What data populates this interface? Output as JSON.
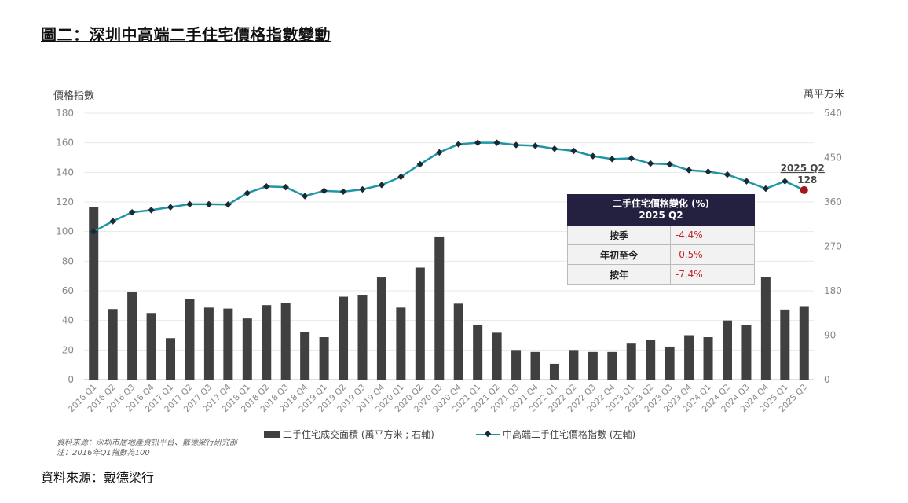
{
  "page_title": "圖二：深圳中高端二手住宅價格指數變動",
  "left_axis_title": "價格指數",
  "right_axis_title": "萬平方米",
  "chart_data": {
    "type": "bar+line",
    "categories": [
      "2016 Q1",
      "2016 Q2",
      "2016 Q3",
      "2016 Q4",
      "2017 Q1",
      "2017 Q2",
      "2017 Q3",
      "2017 Q4",
      "2018 Q1",
      "2018 Q2",
      "2018 Q3",
      "2018 Q4",
      "2019 Q1",
      "2019 Q2",
      "2019 Q3",
      "2019 Q4",
      "2020 Q1",
      "2020 Q2",
      "2020 Q3",
      "2020 Q4",
      "2021 Q1",
      "2021 Q2",
      "2021 Q3",
      "2021 Q4",
      "2022 Q1",
      "2022 Q2",
      "2022 Q3",
      "2022 Q4",
      "2023 Q1",
      "2023 Q2",
      "2023 Q3",
      "2023 Q4",
      "2024 Q1",
      "2024 Q2",
      "2024 Q3",
      "2024 Q4",
      "2025 Q1",
      "2025 Q2"
    ],
    "left_ylim": [
      0,
      180
    ],
    "left_ticks": [
      "0",
      "20",
      "40",
      "60",
      "80",
      "100",
      "120",
      "140",
      "160",
      "180"
    ],
    "right_ylim": [
      0,
      540
    ],
    "right_ticks": [
      "0",
      "90",
      "180",
      "270",
      "360",
      "450",
      "540"
    ],
    "series": [
      {
        "name": "二手住宅成交面積 (萬平方米 ; 右軸)",
        "kind": "bar",
        "axis": "right",
        "color": "#404040",
        "values": [
          349,
          143,
          177,
          135,
          84,
          163,
          146,
          144,
          124,
          151,
          155,
          97,
          86,
          168,
          172,
          207,
          146,
          227,
          290,
          154,
          111,
          95,
          60,
          56,
          32,
          60,
          56,
          56,
          73,
          81,
          67,
          90,
          86,
          120,
          111,
          208,
          142,
          149
        ]
      },
      {
        "name": "中高端二手住宅價格指數 (左軸)",
        "kind": "line",
        "axis": "left",
        "color": "#1f95a6",
        "values": [
          100,
          107,
          113,
          114.5,
          116.5,
          118.5,
          118.5,
          118.3,
          126,
          130.5,
          130,
          124,
          127.5,
          127,
          128.5,
          131.5,
          137,
          145.5,
          153.5,
          159,
          160,
          160,
          158.5,
          158,
          156,
          154.5,
          151,
          149,
          149.5,
          146,
          145.5,
          141.5,
          140.5,
          138.5,
          134,
          129,
          134,
          128
        ]
      }
    ],
    "annotation": {
      "label": "2025 Q2",
      "value": "128",
      "marker_color": "#a3161e"
    }
  },
  "info_table": {
    "header_line1": "二手住宅價格變化 (%)",
    "header_line2": "2025 Q2",
    "rows": [
      {
        "label": "按季",
        "value": "-4.4%"
      },
      {
        "label": "年初至今",
        "value": "-0.5%"
      },
      {
        "label": "按年",
        "value": "-7.4%"
      }
    ]
  },
  "legend": {
    "bar_label": "二手住宅成交面積 (萬平方米 ; 右軸)",
    "line_label": "中高端二手住宅價格指數 (左軸)"
  },
  "source_note_line1": "資料來源：深圳市居地產資訊平台、戴德梁行研究部",
  "source_note_line2": "注：2016年Q1指數為100",
  "bottom_source": "資料來源：戴德梁行"
}
